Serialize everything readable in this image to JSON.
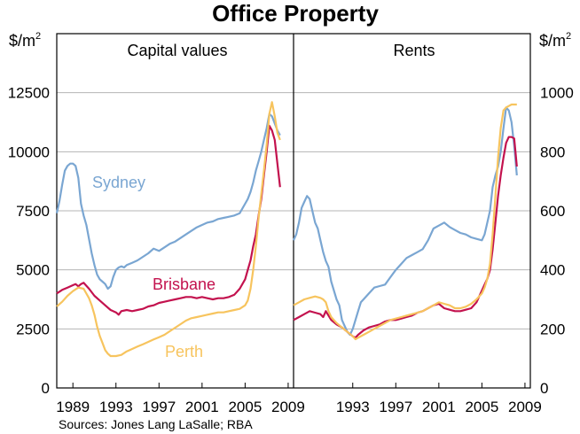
{
  "page": {
    "title": "Office Property",
    "source": "Sources: Jones Lang LaSalle; RBA"
  },
  "colors": {
    "sydney": "#7aa6d2",
    "brisbane": "#c3124e",
    "perth": "#f7c45e",
    "grid": "#b4b4b4",
    "frame": "#000000"
  },
  "chart_data": [
    {
      "type": "line",
      "panel_title": "Capital values",
      "unit_label": "$/m²",
      "x_tick_labels": [
        "1989",
        "1993",
        "1997",
        "2001",
        "2005",
        "2009"
      ],
      "x_ticks": [
        1989,
        1993,
        1997,
        2001,
        2005,
        2009
      ],
      "xlim": [
        1987.5,
        2009.5
      ],
      "ylim": [
        0,
        15000
      ],
      "y_ticks": [
        0,
        2500,
        5000,
        7500,
        10000,
        12500
      ],
      "y_tick_labels": [
        "0",
        "2500",
        "5000",
        "7500",
        "10000",
        "12500"
      ],
      "grid": true,
      "series": [
        {
          "name": "Sydney",
          "color_key": "sydney",
          "x": [
            1987.5,
            1987.75,
            1988,
            1988.25,
            1988.5,
            1988.75,
            1989,
            1989.25,
            1989.5,
            1989.75,
            1990,
            1990.25,
            1990.5,
            1990.75,
            1991,
            1991.25,
            1991.5,
            1991.75,
            1992,
            1992.25,
            1992.5,
            1992.75,
            1993,
            1993.25,
            1993.5,
            1993.75,
            1994,
            1994.5,
            1995,
            1995.5,
            1996,
            1996.5,
            1997,
            1997.5,
            1998,
            1998.5,
            1999,
            1999.5,
            2000,
            2000.5,
            2001,
            2001.5,
            2002,
            2002.5,
            2003,
            2003.5,
            2004,
            2004.5,
            2005,
            2005.25,
            2005.5,
            2005.75,
            2006,
            2006.25,
            2006.5,
            2006.75,
            2007,
            2007.25,
            2007.5,
            2007.75,
            2008,
            2008.25
          ],
          "y": [
            7400,
            7900,
            8600,
            9200,
            9400,
            9500,
            9500,
            9400,
            8900,
            7800,
            7300,
            6900,
            6300,
            5700,
            5200,
            4800,
            4600,
            4500,
            4400,
            4200,
            4300,
            4700,
            5000,
            5100,
            5150,
            5100,
            5200,
            5300,
            5400,
            5550,
            5700,
            5900,
            5800,
            5950,
            6100,
            6200,
            6350,
            6500,
            6650,
            6800,
            6900,
            7000,
            7050,
            7150,
            7200,
            7250,
            7300,
            7400,
            7800,
            8000,
            8300,
            8700,
            9200,
            9600,
            10000,
            10500,
            11000,
            11600,
            11500,
            11200,
            10900,
            10700
          ]
        },
        {
          "name": "Brisbane",
          "color_key": "brisbane",
          "x": [
            1987.5,
            1988,
            1988.5,
            1989,
            1989.25,
            1989.5,
            1989.75,
            1990,
            1990.5,
            1991,
            1991.5,
            1992,
            1992.5,
            1993,
            1993.25,
            1993.5,
            1994,
            1994.5,
            1995,
            1995.5,
            1996,
            1996.5,
            1997,
            1997.5,
            1998,
            1998.5,
            1999,
            1999.5,
            2000,
            2000.5,
            2001,
            2001.5,
            2002,
            2002.5,
            2003,
            2003.5,
            2004,
            2004.5,
            2005,
            2005.25,
            2005.5,
            2005.75,
            2006,
            2006.25,
            2006.5,
            2006.75,
            2007,
            2007.25,
            2007.5,
            2007.75,
            2008,
            2008.25
          ],
          "y": [
            4000,
            4150,
            4250,
            4350,
            4400,
            4300,
            4400,
            4450,
            4200,
            3900,
            3700,
            3500,
            3300,
            3200,
            3100,
            3250,
            3300,
            3250,
            3300,
            3350,
            3450,
            3500,
            3600,
            3650,
            3700,
            3750,
            3800,
            3850,
            3850,
            3800,
            3850,
            3800,
            3750,
            3800,
            3800,
            3850,
            3950,
            4200,
            4600,
            5000,
            5400,
            6000,
            6500,
            7300,
            8000,
            9000,
            10000,
            11100,
            10900,
            10500,
            9500,
            8500
          ]
        },
        {
          "name": "Perth",
          "color_key": "perth",
          "x": [
            1987.5,
            1988,
            1988.5,
            1989,
            1989.5,
            1990,
            1990.5,
            1990.75,
            1991,
            1991.25,
            1991.5,
            1991.75,
            1992,
            1992.25,
            1992.5,
            1993,
            1993.5,
            1994,
            1994.5,
            1995,
            1995.5,
            1996,
            1996.5,
            1997,
            1997.5,
            1998,
            1998.5,
            1999,
            1999.5,
            2000,
            2000.5,
            2001,
            2001.5,
            2002,
            2002.5,
            2003,
            2003.5,
            2004,
            2004.5,
            2005,
            2005.25,
            2005.5,
            2005.75,
            2006,
            2006.25,
            2006.5,
            2006.75,
            2007,
            2007.25,
            2007.5,
            2007.75,
            2008,
            2008.25
          ],
          "y": [
            3450,
            3650,
            3900,
            4100,
            4250,
            4200,
            3800,
            3500,
            3100,
            2600,
            2200,
            1900,
            1600,
            1450,
            1350,
            1350,
            1400,
            1550,
            1650,
            1750,
            1850,
            1950,
            2050,
            2150,
            2250,
            2400,
            2550,
            2700,
            2850,
            2950,
            3000,
            3050,
            3100,
            3150,
            3200,
            3200,
            3250,
            3300,
            3350,
            3500,
            3700,
            4200,
            5000,
            6000,
            7200,
            8200,
            9200,
            10300,
            11600,
            12100,
            11500,
            10800,
            10500
          ]
        }
      ],
      "annotations": [
        {
          "text": "Sydney",
          "series": "Sydney"
        },
        {
          "text": "Brisbane",
          "series": "Brisbane"
        },
        {
          "text": "Perth",
          "series": "Perth"
        }
      ]
    },
    {
      "type": "line",
      "panel_title": "Rents",
      "unit_label": "$/m²",
      "x_tick_labels": [
        "1993",
        "1997",
        "2001",
        "2005",
        "2009"
      ],
      "x_ticks": [
        1993,
        1997,
        2001,
        2005,
        2009
      ],
      "xlim": [
        1987.5,
        2009.5
      ],
      "ylim": [
        0,
        1200
      ],
      "y_ticks": [
        0,
        200,
        400,
        600,
        800,
        1000
      ],
      "y_tick_labels": [
        "0",
        "200",
        "400",
        "600",
        "800",
        "1000"
      ],
      "grid": true,
      "series": [
        {
          "name": "Sydney",
          "color_key": "sydney",
          "x": [
            1987.5,
            1987.75,
            1988,
            1988.25,
            1988.5,
            1988.75,
            1989,
            1989.25,
            1989.5,
            1989.75,
            1990,
            1990.25,
            1990.5,
            1990.75,
            1991,
            1991.25,
            1991.5,
            1991.75,
            1992,
            1992.25,
            1992.5,
            1992.75,
            1993,
            1993.25,
            1993.5,
            1993.75,
            1994,
            1994.5,
            1995,
            1995.5,
            1996,
            1996.5,
            1997,
            1997.5,
            1998,
            1998.5,
            1999,
            1999.5,
            2000,
            2000.5,
            2001,
            2001.5,
            2002,
            2002.5,
            2003,
            2003.5,
            2004,
            2004.5,
            2005,
            2005.25,
            2005.5,
            2005.75,
            2006,
            2006.25,
            2006.5,
            2006.75,
            2007,
            2007.25,
            2007.5,
            2007.75,
            2008,
            2008.25
          ],
          "y": [
            500,
            520,
            560,
            610,
            630,
            650,
            640,
            600,
            560,
            540,
            500,
            460,
            430,
            410,
            360,
            330,
            300,
            280,
            230,
            210,
            190,
            180,
            200,
            230,
            260,
            290,
            300,
            320,
            340,
            345,
            350,
            375,
            400,
            420,
            440,
            450,
            460,
            470,
            500,
            540,
            550,
            560,
            545,
            535,
            525,
            520,
            510,
            505,
            500,
            520,
            560,
            600,
            680,
            720,
            750,
            800,
            880,
            950,
            940,
            900,
            820,
            720
          ]
        },
        {
          "name": "Brisbane",
          "color_key": "brisbane",
          "x": [
            1987.5,
            1988,
            1988.5,
            1989,
            1989.5,
            1990,
            1990.25,
            1990.5,
            1991,
            1991.5,
            1992,
            1992.5,
            1993,
            1993.25,
            1993.5,
            1994,
            1994.5,
            1995,
            1995.5,
            1996,
            1996.5,
            1997,
            1997.5,
            1998,
            1998.5,
            1999,
            1999.5,
            2000,
            2000.5,
            2001,
            2001.5,
            2002,
            2002.5,
            2003,
            2003.5,
            2004,
            2004.5,
            2005,
            2005.25,
            2005.5,
            2005.75,
            2006,
            2006.25,
            2006.5,
            2006.75,
            2007,
            2007.25,
            2007.5,
            2007.75,
            2008,
            2008.25
          ],
          "y": [
            230,
            240,
            250,
            260,
            255,
            250,
            240,
            260,
            230,
            215,
            205,
            190,
            175,
            170,
            180,
            195,
            205,
            210,
            215,
            225,
            230,
            230,
            235,
            240,
            245,
            255,
            260,
            270,
            280,
            285,
            270,
            265,
            260,
            260,
            265,
            270,
            290,
            330,
            350,
            370,
            400,
            470,
            560,
            650,
            720,
            780,
            830,
            850,
            850,
            845,
            750
          ]
        },
        {
          "name": "Perth",
          "color_key": "perth",
          "x": [
            1987.5,
            1988,
            1988.5,
            1989,
            1989.5,
            1990,
            1990.25,
            1990.5,
            1990.75,
            1991,
            1991.5,
            1992,
            1992.5,
            1993,
            1993.25,
            1993.5,
            1994,
            1994.5,
            1995,
            1995.5,
            1996,
            1996.5,
            1997,
            1997.5,
            1998,
            1998.5,
            1999,
            1999.5,
            2000,
            2000.5,
            2001,
            2001.5,
            2002,
            2002.5,
            2003,
            2003.5,
            2004,
            2004.5,
            2005,
            2005.25,
            2005.5,
            2005.75,
            2006,
            2006.25,
            2006.5,
            2006.75,
            2007,
            2007.25,
            2007.5,
            2007.75,
            2008,
            2008.25
          ],
          "y": [
            280,
            290,
            300,
            305,
            310,
            305,
            300,
            290,
            260,
            240,
            220,
            205,
            190,
            175,
            165,
            170,
            180,
            190,
            200,
            210,
            220,
            230,
            235,
            240,
            245,
            250,
            255,
            260,
            270,
            280,
            290,
            285,
            280,
            270,
            270,
            275,
            285,
            300,
            320,
            340,
            370,
            420,
            520,
            650,
            780,
            880,
            940,
            950,
            955,
            960,
            960,
            960
          ]
        }
      ]
    }
  ]
}
